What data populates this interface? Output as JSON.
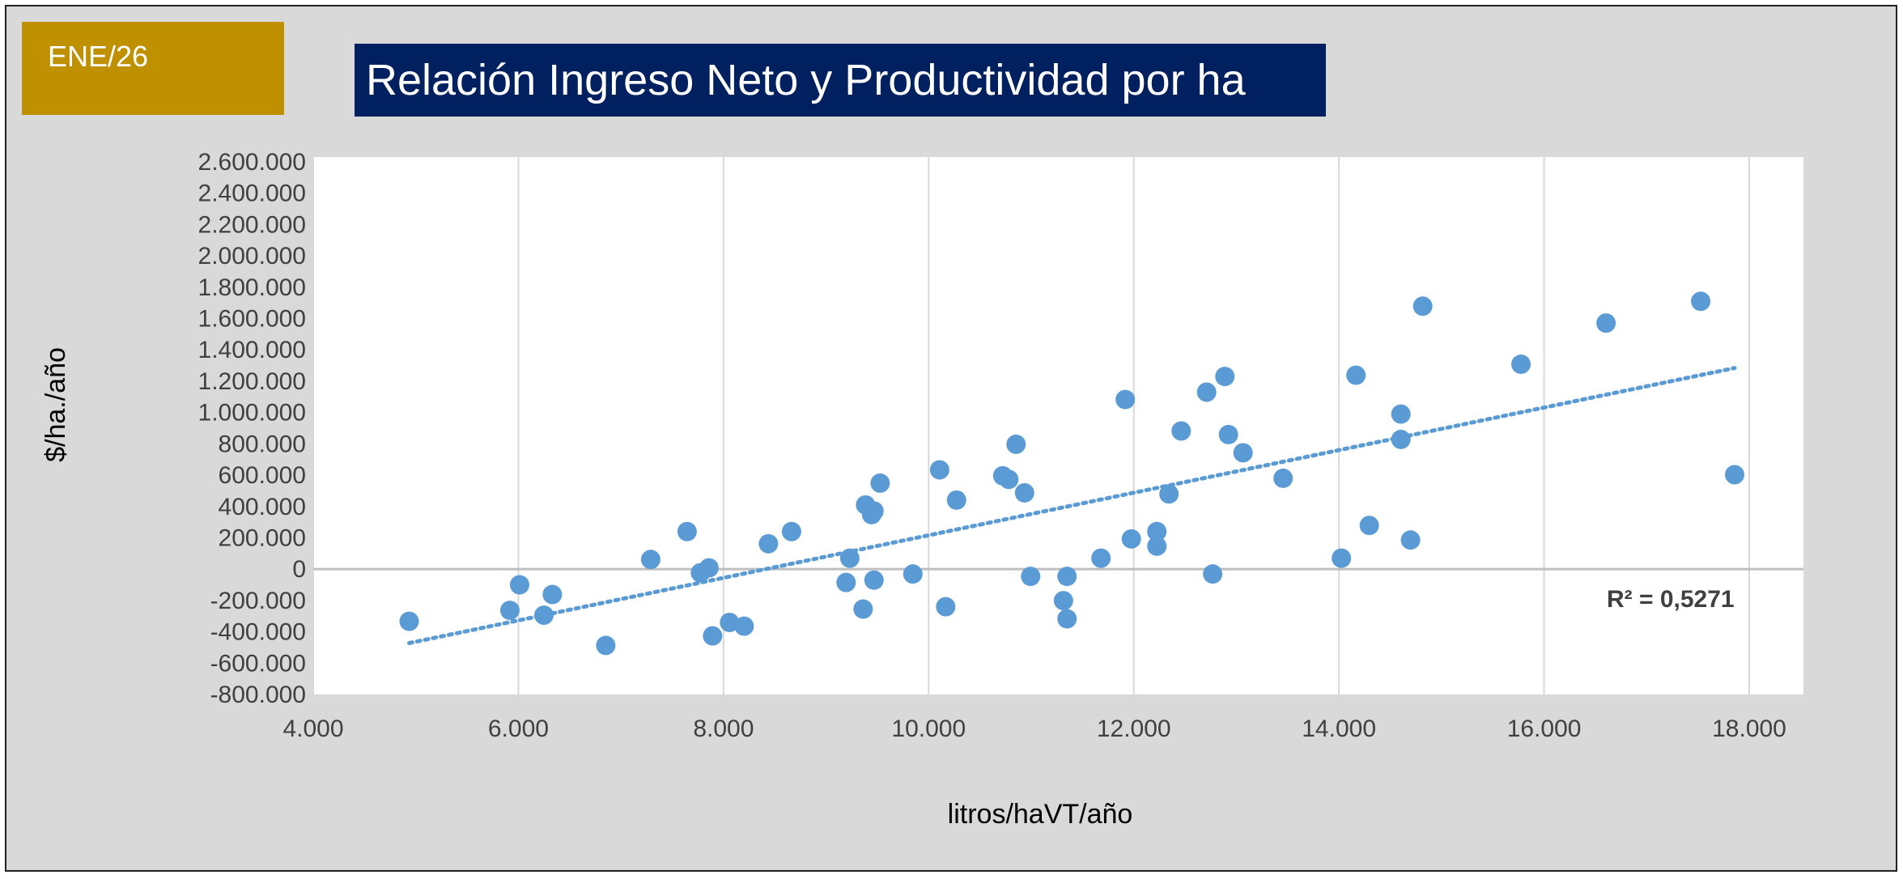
{
  "badge": {
    "label": "ENE/26",
    "color": "#bf9000"
  },
  "colors": {
    "title_bg": "#002060",
    "marker": "#5b9bd5",
    "trendline": "#5b9bd5",
    "background": "#d9d9d9",
    "plot_bg": "#ffffff",
    "grid": "#d9d9d9"
  },
  "chart_data": {
    "type": "scatter",
    "title": "Relación Ingreso Neto y Productividad por ha",
    "xlabel": "litros/haVT/año",
    "ylabel": "$/ha./año",
    "xlim": [
      4000,
      18000
    ],
    "ylim": [
      -800000,
      2600000
    ],
    "xticks": [
      4000,
      6000,
      8000,
      10000,
      12000,
      14000,
      16000,
      18000
    ],
    "xtick_labels": [
      "4.000",
      "6.000",
      "8.000",
      "10.000",
      "12.000",
      "14.000",
      "16.000",
      "18.000"
    ],
    "yticks": [
      2600000,
      2400000,
      2200000,
      2000000,
      1800000,
      1600000,
      1400000,
      1200000,
      1000000,
      800000,
      600000,
      400000,
      200000,
      0,
      -200000,
      -400000,
      -600000,
      -800000
    ],
    "ytick_labels": [
      "2.600.000",
      "2.400.000",
      "2.200.000",
      "2.000.000",
      "1.800.000",
      "1.600.000",
      "1.400.000",
      "1.200.000",
      "1.000.000",
      "800.000",
      "600.000",
      "400.000",
      "200.000",
      "0",
      "-200.000",
      "-400.000",
      "-600.000",
      "-800.000"
    ],
    "grid": "vertical",
    "points": [
      [
        4935,
        -333000
      ],
      [
        6012,
        -100000
      ],
      [
        5917,
        -263000
      ],
      [
        6249,
        -294000
      ],
      [
        6331,
        -162000
      ],
      [
        6852,
        -487000
      ],
      [
        7290,
        62000
      ],
      [
        7645,
        240000
      ],
      [
        7775,
        -23000
      ],
      [
        7858,
        8000
      ],
      [
        7893,
        -426000
      ],
      [
        8059,
        -340000
      ],
      [
        8201,
        -364000
      ],
      [
        8438,
        162000
      ],
      [
        8663,
        240000
      ],
      [
        9195,
        -85000
      ],
      [
        9231,
        70000
      ],
      [
        9361,
        -255000
      ],
      [
        9385,
        410000
      ],
      [
        9444,
        348000
      ],
      [
        9467,
        371000
      ],
      [
        9467,
        -70000
      ],
      [
        9527,
        549000
      ],
      [
        9846,
        -31000
      ],
      [
        10107,
        634000
      ],
      [
        10166,
        -240000
      ],
      [
        10272,
        441000
      ],
      [
        10722,
        596000
      ],
      [
        10781,
        573000
      ],
      [
        10852,
        797000
      ],
      [
        10935,
        487000
      ],
      [
        10994,
        -46000
      ],
      [
        11314,
        -201000
      ],
      [
        11349,
        -46000
      ],
      [
        11349,
        -317000
      ],
      [
        11680,
        70000
      ],
      [
        11917,
        1083000
      ],
      [
        11976,
        193000
      ],
      [
        12225,
        240000
      ],
      [
        12225,
        147000
      ],
      [
        12343,
        480000
      ],
      [
        12462,
        882000
      ],
      [
        12710,
        1130000
      ],
      [
        12769,
        -31000
      ],
      [
        12888,
        1230000
      ],
      [
        12923,
        859000
      ],
      [
        13065,
        743000
      ],
      [
        13456,
        580000
      ],
      [
        14024,
        70000
      ],
      [
        14166,
        1238000
      ],
      [
        14296,
        279000
      ],
      [
        14604,
        990000
      ],
      [
        14604,
        828000
      ],
      [
        14698,
        186000
      ],
      [
        14817,
        1679000
      ],
      [
        15775,
        1308000
      ],
      [
        16604,
        1571000
      ],
      [
        17527,
        1710000
      ],
      [
        17858,
        603000
      ]
    ],
    "trendline": {
      "type": "linear",
      "from": [
        4935,
        -472000
      ],
      "to": [
        17858,
        1284000
      ],
      "style": "dotted"
    },
    "annotation": "R² = 0,5271"
  }
}
